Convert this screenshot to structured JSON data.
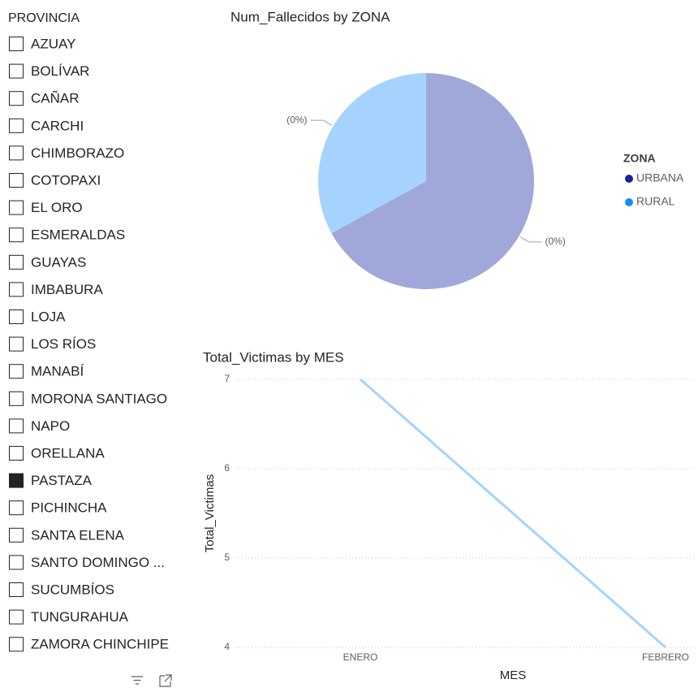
{
  "slicer": {
    "title": "PROVINCIA",
    "items": [
      "AZUAY",
      "BOLÍVAR",
      "CAÑAR",
      "CARCHI",
      "CHIMBORAZO",
      "COTOPAXI",
      "EL ORO",
      "ESMERALDAS",
      "GUAYAS",
      "IMBABURA",
      "LOJA",
      "LOS RÍOS",
      "MANABÍ",
      "MORONA SANTIAGO",
      "NAPO",
      "ORELLANA",
      "PASTAZA",
      "PICHINCHA",
      "SANTA ELENA",
      "SANTO DOMINGO ...",
      "SUCUMBÍOS",
      "TUNGURAHUA",
      "ZAMORA CHINCHIPE"
    ],
    "selected_index": 16
  },
  "chart_data": [
    {
      "type": "pie",
      "title": "Num_Fallecidos by ZONA",
      "legend_title": "ZONA",
      "categories": [
        "URBANA",
        "RURAL"
      ],
      "values": [
        67,
        33
      ],
      "colors": [
        "#a0a8da",
        "#a5d3fd"
      ],
      "legend_colors": [
        "#12239e",
        "#118dff"
      ],
      "annotations": [
        "(0%)",
        "(0%)"
      ],
      "legend": "right"
    },
    {
      "type": "line",
      "title": "Total_Victimas by MES",
      "x_label": "MES",
      "y_label": "Total_Victimas",
      "categories": [
        "ENERO",
        "FEBRERO"
      ],
      "values": [
        7,
        4
      ],
      "color": "#a5d3fd",
      "ylim": [
        4,
        7
      ],
      "yticks": [
        4,
        5,
        6,
        7
      ],
      "grid": true
    }
  ]
}
